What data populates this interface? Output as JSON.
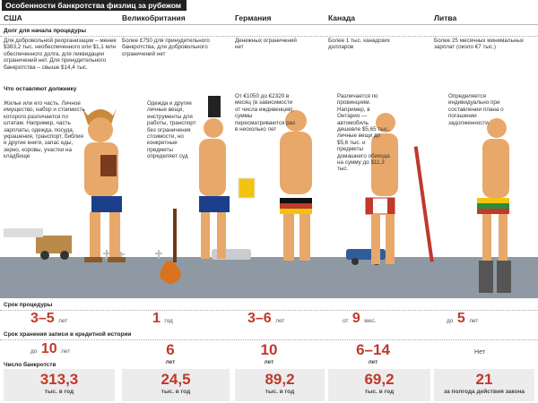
{
  "title": "Особенности банкротства физлиц за рубежом",
  "columns": [
    "США",
    "Великобритания",
    "Германия",
    "Канада",
    "Литва"
  ],
  "sections": {
    "debt": "Долг для начала процедуры",
    "keep": "Что оставляют должнику",
    "term": "Срок процедуры",
    "credit": "Срок хранения записи в кредитной истории",
    "count": "Число банкротств"
  },
  "debt_text": [
    "Для добровольной реорганизации – менее $383,2 тыс. необеспеченного или $1,1 млн обеспеченного долга, для ликвидации ограничений нет. Для принудительного банкротства – свыше $14,4 тыс.",
    "Более £750 для принудительного банкротства, для добровольного ограничений нет",
    "Денежных ограничений нет",
    "Более 1 тыс. канадских долларов",
    "Более 25 месячных минимальных зарплат (около €7 тыс.)"
  ],
  "keep_text": [
    "Жилье или его часть. Личное имущество, набор и стоимость которого различается по штатам. Например, часть зарплаты, одежда, посуда, украшения, транспорт, библия и другие книги, запас еды, зерно, коровы, участки на кладбище",
    "Одежда и другие личные вещи, инструменты для работы, транспорт без ограничения стоимости, но конкретные предметы определяет суд",
    "От €1050 до €2320 в месяц (в зависимости от числа иждивенцев), суммы пересматриваются раз в несколько лет",
    "Различается по провинциям. Например, в Онтарио — автомобиль дешевле $5,65 тыс., личные вещи до $5,6 тыс. и предметы домашнего обихода на сумму до $11,3 тыс.",
    "Определяется индивидуально при составлении плана о погашении задолженности"
  ],
  "term": [
    {
      "value": "3–5",
      "unit": "лет"
    },
    {
      "value": "1",
      "unit": "год"
    },
    {
      "value": "3–6",
      "unit": "лет"
    },
    {
      "value": "9",
      "unit": "мес.",
      "prefix": "от"
    },
    {
      "value": "5",
      "unit": "лет",
      "prefix": "до"
    }
  ],
  "credit": [
    {
      "value": "10",
      "unit": "лет",
      "prefix": "до"
    },
    {
      "value": "6",
      "unit": "лет"
    },
    {
      "value": "10",
      "unit": "лет"
    },
    {
      "value": "6–14",
      "unit": "лет"
    },
    {
      "value": "Нет",
      "unit": ""
    }
  ],
  "count": [
    {
      "value": "313,3",
      "unit": "тыс. в год"
    },
    {
      "value": "24,5",
      "unit": "тыс. в год"
    },
    {
      "value": "89,2",
      "unit": "тыс. в год"
    },
    {
      "value": "69,2",
      "unit": "тыс. в год"
    },
    {
      "value": "21",
      "unit": "за полгода действия закона"
    }
  ],
  "colors": {
    "accent": "#c0392b",
    "road": "#8e99a3",
    "skin": "#e8a86a"
  }
}
